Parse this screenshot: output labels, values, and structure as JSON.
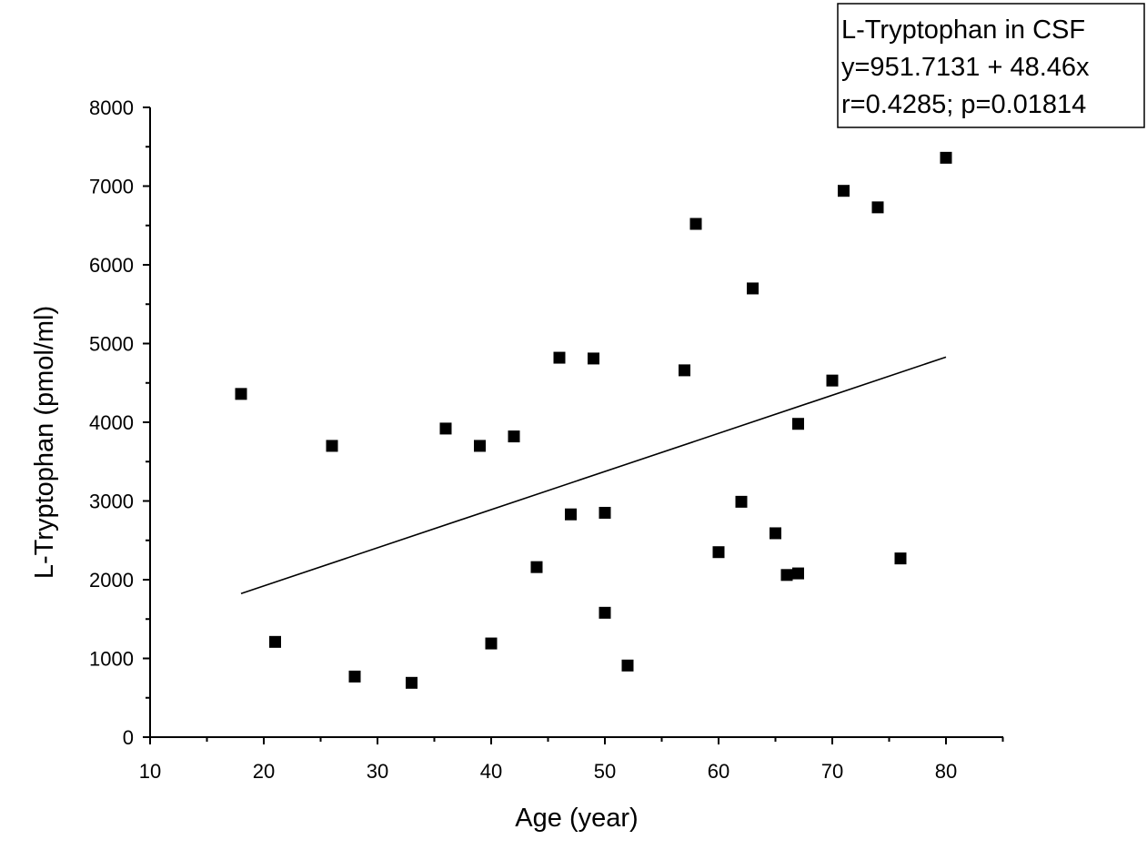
{
  "chart_data": {
    "type": "scatter",
    "title": "",
    "xlabel": "Age (year)",
    "ylabel": "L-Tryptophan (pmol/ml)",
    "xlim": [
      10,
      85
    ],
    "ylim": [
      0,
      8000
    ],
    "x_ticks": [
      10,
      20,
      30,
      40,
      50,
      60,
      70,
      80
    ],
    "y_ticks": [
      0,
      1000,
      2000,
      3000,
      4000,
      5000,
      6000,
      7000,
      8000
    ],
    "grid": false,
    "legend_position": "top-right",
    "legend": [
      "L-Tryptophan in CSF",
      "y=951.7131 + 48.46x",
      "r=0.4285; p=0.01814"
    ],
    "fit": {
      "intercept": 951.7131,
      "slope": 48.46,
      "x_range": [
        18,
        80
      ]
    },
    "series": [
      {
        "marker": "square",
        "color": "#000000",
        "points": [
          [
            18,
            4360
          ],
          [
            21,
            1210
          ],
          [
            26,
            3700
          ],
          [
            28,
            770
          ],
          [
            33,
            690
          ],
          [
            36,
            3920
          ],
          [
            39,
            3700
          ],
          [
            40,
            1190
          ],
          [
            42,
            3820
          ],
          [
            44,
            2160
          ],
          [
            46,
            4820
          ],
          [
            47,
            2830
          ],
          [
            49,
            4810
          ],
          [
            50,
            2850
          ],
          [
            50,
            1580
          ],
          [
            52,
            910
          ],
          [
            57,
            4660
          ],
          [
            58,
            6520
          ],
          [
            60,
            2350
          ],
          [
            62,
            2990
          ],
          [
            63,
            5700
          ],
          [
            65,
            2590
          ],
          [
            66,
            2060
          ],
          [
            67,
            2080
          ],
          [
            67,
            3980
          ],
          [
            70,
            4530
          ],
          [
            71,
            6940
          ],
          [
            74,
            6730
          ],
          [
            76,
            2270
          ],
          [
            80,
            7360
          ]
        ]
      }
    ]
  }
}
